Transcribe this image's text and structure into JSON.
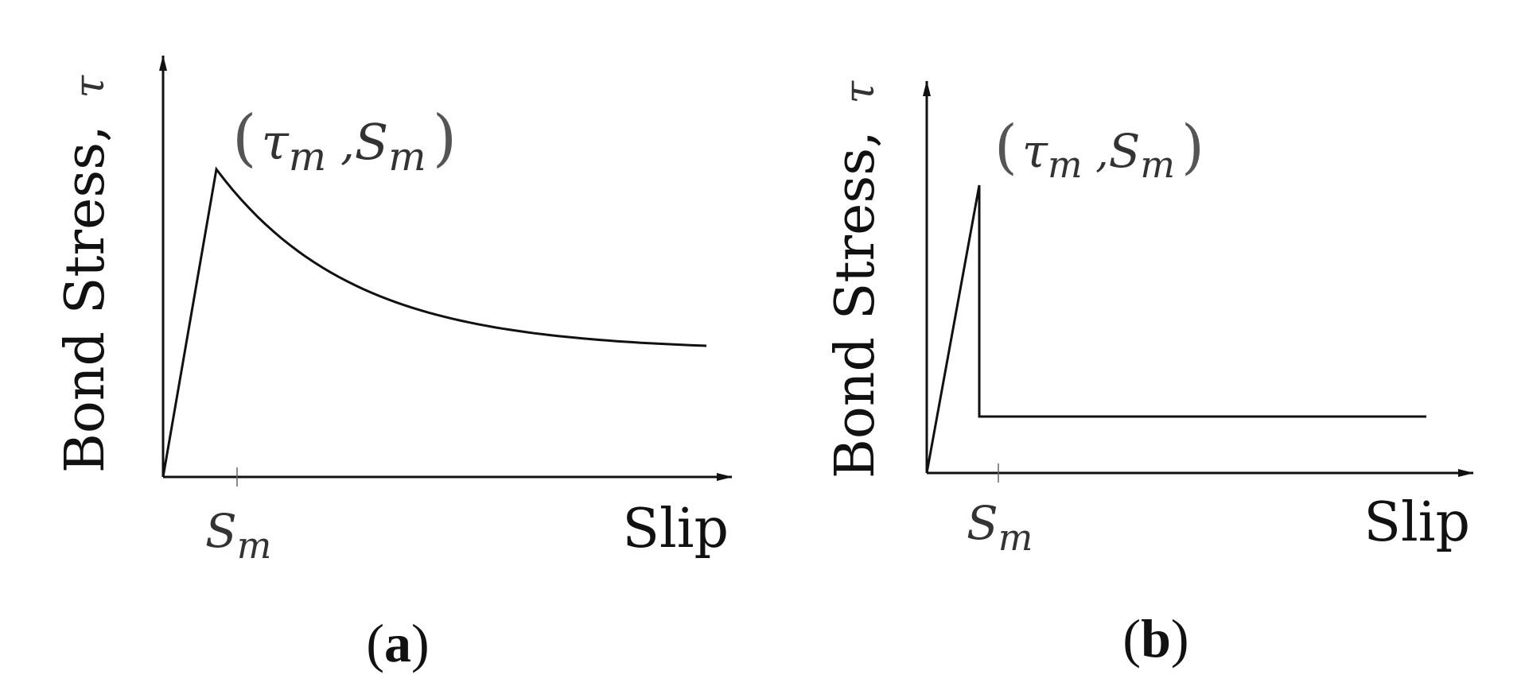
{
  "panels": [
    {
      "id": "a",
      "ylabel": "Bond Stress,",
      "ylabel_symbol": "τ",
      "xlabel": "Slip",
      "tick_symbol": "S",
      "tick_sub": "m",
      "peak_label": {
        "open": "(",
        "tau": "τ",
        "tau_sub": "m",
        "comma": " ,",
        "s": "S",
        "s_sub": "m",
        "close": ")"
      },
      "caption_open": "(",
      "caption_letter": "a",
      "caption_close": ")",
      "curve": {
        "type": "linear-rise-then-exponential-decay",
        "peak": {
          "slip": 1,
          "stress": 1
        },
        "residual": {
          "slip": 7.2,
          "stress": 0.42
        }
      }
    },
    {
      "id": "b",
      "ylabel": "Bond Stress,",
      "ylabel_symbol": "τ",
      "xlabel": "Slip",
      "tick_symbol": "S",
      "tick_sub": "m",
      "peak_label": {
        "open": "(",
        "tau": "τ",
        "tau_sub": "m",
        "comma": " ,",
        "s": "S",
        "s_sub": "m",
        "close": ")"
      },
      "caption_open": "(",
      "caption_letter": "b",
      "caption_close": ")",
      "curve": {
        "type": "linear-rise-then-sudden-drop-to-constant",
        "peak": {
          "slip": 1,
          "stress": 1
        },
        "residual": {
          "slip": 6.6,
          "stress": 0.2
        }
      }
    }
  ]
}
